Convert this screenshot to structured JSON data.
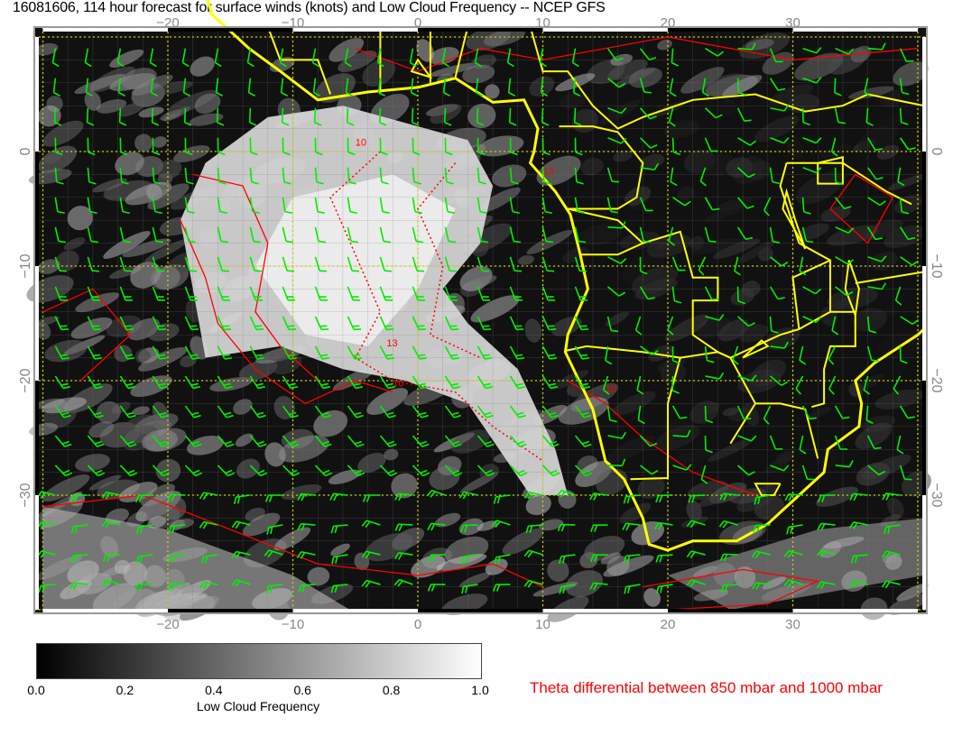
{
  "title": "16081606, 114 hour forecast for surface winds (knots) and Low Cloud Frequency -- NCEP GFS",
  "map": {
    "lon_range": [
      -30.5,
      40.5
    ],
    "lat_range": [
      -40.3,
      10.9
    ],
    "lon_ticks": [
      "−20",
      "−10",
      "0",
      "10",
      "20",
      "30"
    ],
    "lon_tick_values": [
      -20,
      -10,
      0,
      10,
      20,
      30
    ],
    "lat_ticks": [
      "0",
      "−10",
      "−20",
      "−30"
    ],
    "lat_tick_values": [
      0,
      -10,
      -20,
      -30
    ],
    "contour_labels": [
      "10",
      "13",
      "10",
      "13",
      "10"
    ],
    "colors": {
      "wind_barbs": "#00ee00",
      "coastlines": "#ffff00",
      "theta_contours": "#ff0000",
      "gridlines": "#dddd00"
    }
  },
  "colorbar": {
    "labels": [
      "0.0",
      "0.2",
      "0.4",
      "0.6",
      "0.8",
      "1.0"
    ],
    "title": "Low Cloud Frequency",
    "range": [
      0,
      1
    ],
    "colormap": "black-to-white"
  },
  "legend": {
    "theta_label": "Theta differential between 850 mbar and 1000 mbar"
  }
}
